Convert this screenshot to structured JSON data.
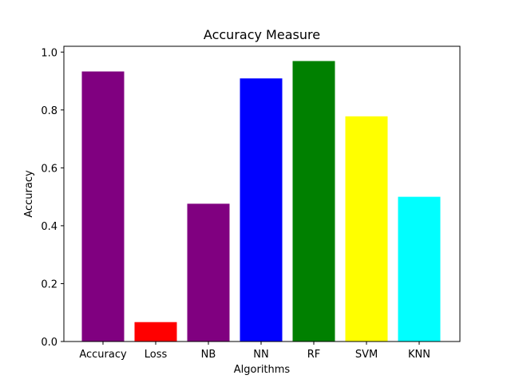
{
  "chart_data": {
    "type": "bar",
    "title": "Accuracy Measure",
    "xlabel": "Algorithms",
    "ylabel": "Accuracy",
    "categories": [
      "Accuracy",
      "Loss",
      "NB",
      "NN",
      "RF",
      "SVM",
      "KNN"
    ],
    "values": [
      0.933,
      0.067,
      0.476,
      0.909,
      0.969,
      0.778,
      0.5
    ],
    "colors": [
      "#800080",
      "#ff0000",
      "#800080",
      "#0000ff",
      "#008000",
      "#ffff00",
      "#00ffff"
    ],
    "ylim": [
      0,
      1.02
    ],
    "yticks": [
      0.0,
      0.2,
      0.4,
      0.6,
      0.8,
      1.0
    ],
    "ytick_labels": [
      "0.0",
      "0.2",
      "0.4",
      "0.6",
      "0.8",
      "1.0"
    ],
    "grid": false,
    "legend": "none"
  }
}
